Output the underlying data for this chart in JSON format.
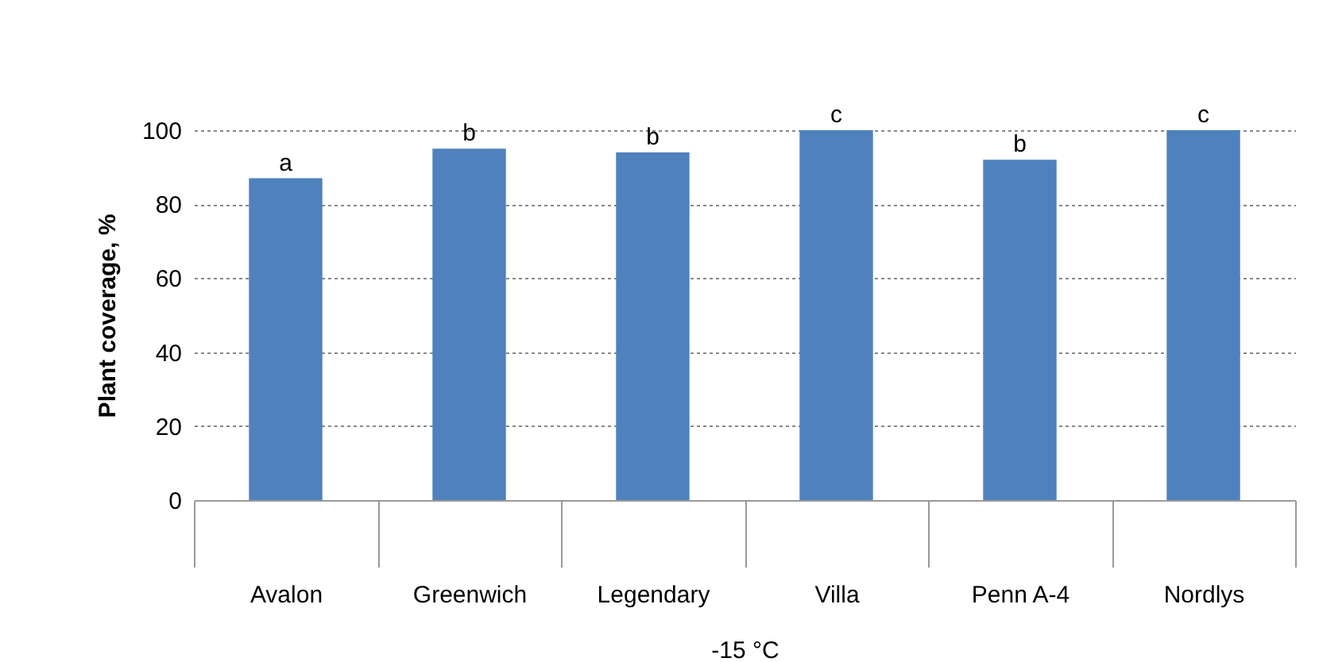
{
  "chart_data": {
    "type": "bar",
    "xlabel": "-15 °C",
    "ylabel": "Plant coverage, %",
    "categories": [
      "Avalon",
      "Greenwich",
      "Legendary",
      "Villa",
      "Penn A-4",
      "Nordlys"
    ],
    "values": [
      87,
      95,
      94,
      100,
      92,
      100
    ],
    "color": "#4f81bd",
    "ylim": [
      0,
      100
    ],
    "yticks": [
      0,
      20,
      40,
      60,
      80,
      100
    ],
    "grid": "y",
    "annotations": [
      {
        "text": "a",
        "x": "Avalon",
        "y": 87
      },
      {
        "text": "b",
        "x": "Greenwich",
        "y": 95
      },
      {
        "text": "b",
        "x": "Legendary",
        "y": 94
      },
      {
        "text": "c",
        "x": "Villa",
        "y": 100
      },
      {
        "text": "b",
        "x": "Penn A-4",
        "y": 92
      },
      {
        "text": "c",
        "x": "Nordlys",
        "y": 100
      }
    ]
  }
}
